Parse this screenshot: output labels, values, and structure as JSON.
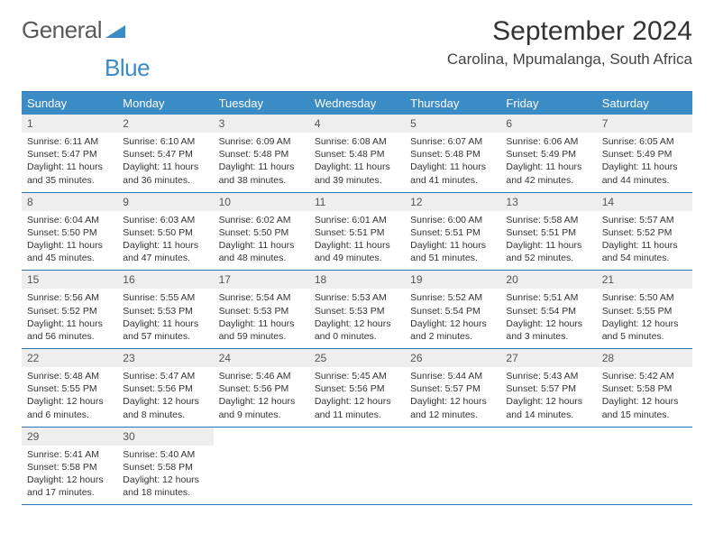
{
  "logo": {
    "text_general": "General",
    "text_blue": "Blue"
  },
  "title": "September 2024",
  "location": "Carolina, Mpumalanga, South Africa",
  "colors": {
    "header_bg": "#3b8bc4",
    "border": "#2f75b5",
    "daynum_bg": "#eeeeee",
    "text": "#333333"
  },
  "weekdays": [
    "Sunday",
    "Monday",
    "Tuesday",
    "Wednesday",
    "Thursday",
    "Friday",
    "Saturday"
  ],
  "weeks": [
    [
      {
        "n": "1",
        "sr": "Sunrise: 6:11 AM",
        "ss": "Sunset: 5:47 PM",
        "dl": "Daylight: 11 hours and 35 minutes."
      },
      {
        "n": "2",
        "sr": "Sunrise: 6:10 AM",
        "ss": "Sunset: 5:47 PM",
        "dl": "Daylight: 11 hours and 36 minutes."
      },
      {
        "n": "3",
        "sr": "Sunrise: 6:09 AM",
        "ss": "Sunset: 5:48 PM",
        "dl": "Daylight: 11 hours and 38 minutes."
      },
      {
        "n": "4",
        "sr": "Sunrise: 6:08 AM",
        "ss": "Sunset: 5:48 PM",
        "dl": "Daylight: 11 hours and 39 minutes."
      },
      {
        "n": "5",
        "sr": "Sunrise: 6:07 AM",
        "ss": "Sunset: 5:48 PM",
        "dl": "Daylight: 11 hours and 41 minutes."
      },
      {
        "n": "6",
        "sr": "Sunrise: 6:06 AM",
        "ss": "Sunset: 5:49 PM",
        "dl": "Daylight: 11 hours and 42 minutes."
      },
      {
        "n": "7",
        "sr": "Sunrise: 6:05 AM",
        "ss": "Sunset: 5:49 PM",
        "dl": "Daylight: 11 hours and 44 minutes."
      }
    ],
    [
      {
        "n": "8",
        "sr": "Sunrise: 6:04 AM",
        "ss": "Sunset: 5:50 PM",
        "dl": "Daylight: 11 hours and 45 minutes."
      },
      {
        "n": "9",
        "sr": "Sunrise: 6:03 AM",
        "ss": "Sunset: 5:50 PM",
        "dl": "Daylight: 11 hours and 47 minutes."
      },
      {
        "n": "10",
        "sr": "Sunrise: 6:02 AM",
        "ss": "Sunset: 5:50 PM",
        "dl": "Daylight: 11 hours and 48 minutes."
      },
      {
        "n": "11",
        "sr": "Sunrise: 6:01 AM",
        "ss": "Sunset: 5:51 PM",
        "dl": "Daylight: 11 hours and 49 minutes."
      },
      {
        "n": "12",
        "sr": "Sunrise: 6:00 AM",
        "ss": "Sunset: 5:51 PM",
        "dl": "Daylight: 11 hours and 51 minutes."
      },
      {
        "n": "13",
        "sr": "Sunrise: 5:58 AM",
        "ss": "Sunset: 5:51 PM",
        "dl": "Daylight: 11 hours and 52 minutes."
      },
      {
        "n": "14",
        "sr": "Sunrise: 5:57 AM",
        "ss": "Sunset: 5:52 PM",
        "dl": "Daylight: 11 hours and 54 minutes."
      }
    ],
    [
      {
        "n": "15",
        "sr": "Sunrise: 5:56 AM",
        "ss": "Sunset: 5:52 PM",
        "dl": "Daylight: 11 hours and 56 minutes."
      },
      {
        "n": "16",
        "sr": "Sunrise: 5:55 AM",
        "ss": "Sunset: 5:53 PM",
        "dl": "Daylight: 11 hours and 57 minutes."
      },
      {
        "n": "17",
        "sr": "Sunrise: 5:54 AM",
        "ss": "Sunset: 5:53 PM",
        "dl": "Daylight: 11 hours and 59 minutes."
      },
      {
        "n": "18",
        "sr": "Sunrise: 5:53 AM",
        "ss": "Sunset: 5:53 PM",
        "dl": "Daylight: 12 hours and 0 minutes."
      },
      {
        "n": "19",
        "sr": "Sunrise: 5:52 AM",
        "ss": "Sunset: 5:54 PM",
        "dl": "Daylight: 12 hours and 2 minutes."
      },
      {
        "n": "20",
        "sr": "Sunrise: 5:51 AM",
        "ss": "Sunset: 5:54 PM",
        "dl": "Daylight: 12 hours and 3 minutes."
      },
      {
        "n": "21",
        "sr": "Sunrise: 5:50 AM",
        "ss": "Sunset: 5:55 PM",
        "dl": "Daylight: 12 hours and 5 minutes."
      }
    ],
    [
      {
        "n": "22",
        "sr": "Sunrise: 5:48 AM",
        "ss": "Sunset: 5:55 PM",
        "dl": "Daylight: 12 hours and 6 minutes."
      },
      {
        "n": "23",
        "sr": "Sunrise: 5:47 AM",
        "ss": "Sunset: 5:56 PM",
        "dl": "Daylight: 12 hours and 8 minutes."
      },
      {
        "n": "24",
        "sr": "Sunrise: 5:46 AM",
        "ss": "Sunset: 5:56 PM",
        "dl": "Daylight: 12 hours and 9 minutes."
      },
      {
        "n": "25",
        "sr": "Sunrise: 5:45 AM",
        "ss": "Sunset: 5:56 PM",
        "dl": "Daylight: 12 hours and 11 minutes."
      },
      {
        "n": "26",
        "sr": "Sunrise: 5:44 AM",
        "ss": "Sunset: 5:57 PM",
        "dl": "Daylight: 12 hours and 12 minutes."
      },
      {
        "n": "27",
        "sr": "Sunrise: 5:43 AM",
        "ss": "Sunset: 5:57 PM",
        "dl": "Daylight: 12 hours and 14 minutes."
      },
      {
        "n": "28",
        "sr": "Sunrise: 5:42 AM",
        "ss": "Sunset: 5:58 PM",
        "dl": "Daylight: 12 hours and 15 minutes."
      }
    ],
    [
      {
        "n": "29",
        "sr": "Sunrise: 5:41 AM",
        "ss": "Sunset: 5:58 PM",
        "dl": "Daylight: 12 hours and 17 minutes."
      },
      {
        "n": "30",
        "sr": "Sunrise: 5:40 AM",
        "ss": "Sunset: 5:58 PM",
        "dl": "Daylight: 12 hours and 18 minutes."
      },
      null,
      null,
      null,
      null,
      null
    ]
  ]
}
